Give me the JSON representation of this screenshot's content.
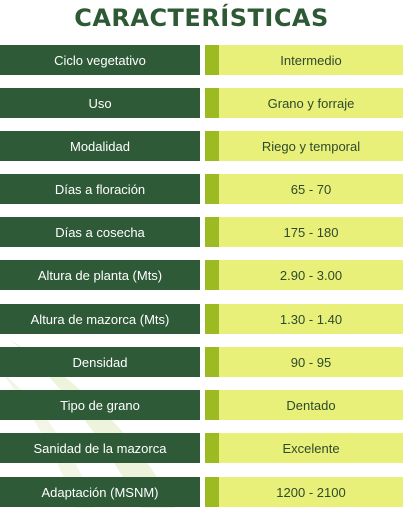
{
  "title": "CARACTERÍSTICAS",
  "colors": {
    "label_bg": "#2e5a37",
    "value_bg": "#e9f07a",
    "accent": "#9cba22",
    "title": "#2d5a35"
  },
  "rows": [
    {
      "label": "Ciclo vegetativo",
      "value": "Intermedio"
    },
    {
      "label": "Uso",
      "value": "Grano y forraje"
    },
    {
      "label": "Modalidad",
      "value": "Riego y temporal"
    },
    {
      "label": "Días a floración",
      "value": "65 - 70"
    },
    {
      "label": "Días a cosecha",
      "value": "175 - 180"
    },
    {
      "label": "Altura de planta (Mts)",
      "value": "2.90 - 3.00"
    },
    {
      "label": "Altura de mazorca (Mts)",
      "value": "1.30 - 1.40"
    },
    {
      "label": "Densidad",
      "value": "90 - 95"
    },
    {
      "label": "Tipo de grano",
      "value": "Dentado"
    },
    {
      "label": "Sanidad de la mazorca",
      "value": "Excelente"
    },
    {
      "label": "Adaptación (MSNM)",
      "value": "1200 - 2100"
    }
  ]
}
